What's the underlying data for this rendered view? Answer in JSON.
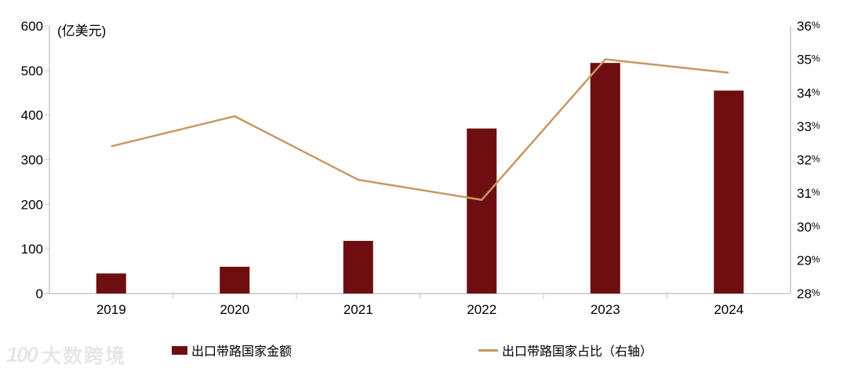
{
  "chart_data": {
    "type": "combo",
    "title": "",
    "categories": [
      "2019",
      "2020",
      "2021",
      "2022",
      "2023",
      "2024"
    ],
    "series": [
      {
        "name": "出口带路国家金额",
        "type": "bar",
        "axis": "left",
        "values": [
          45,
          60,
          118,
          370,
          517,
          455
        ],
        "color": "#6e0e10"
      },
      {
        "name": "出口带路国家占比（右轴）",
        "type": "line",
        "axis": "right",
        "values": [
          32.4,
          33.3,
          31.4,
          30.8,
          35.0,
          34.6
        ],
        "color": "#c49a63"
      }
    ],
    "left_axis": {
      "label": "(亿美元)",
      "min": 0,
      "max": 600,
      "step": 100,
      "tick_labels": [
        "0",
        "100",
        "200",
        "300",
        "400",
        "500",
        "600"
      ]
    },
    "right_axis": {
      "min": 28,
      "max": 36,
      "step": 1,
      "tick_labels": [
        "28%",
        "29%",
        "30%",
        "31%",
        "32%",
        "33%",
        "34%",
        "35%",
        "36%"
      ]
    },
    "grid": "off",
    "legend_position": "bottom"
  },
  "legend": {
    "bar_label": "出口带路国家金额",
    "line_label": "出口带路国家占比（右轴）"
  },
  "watermark": {
    "logo": "100",
    "text": "大数跨境"
  },
  "colors": {
    "bar": "#6e0e10",
    "line": "#c49a63",
    "axis": "#c9c9c9",
    "text": "#000000",
    "watermark": "#e7e7e7"
  }
}
